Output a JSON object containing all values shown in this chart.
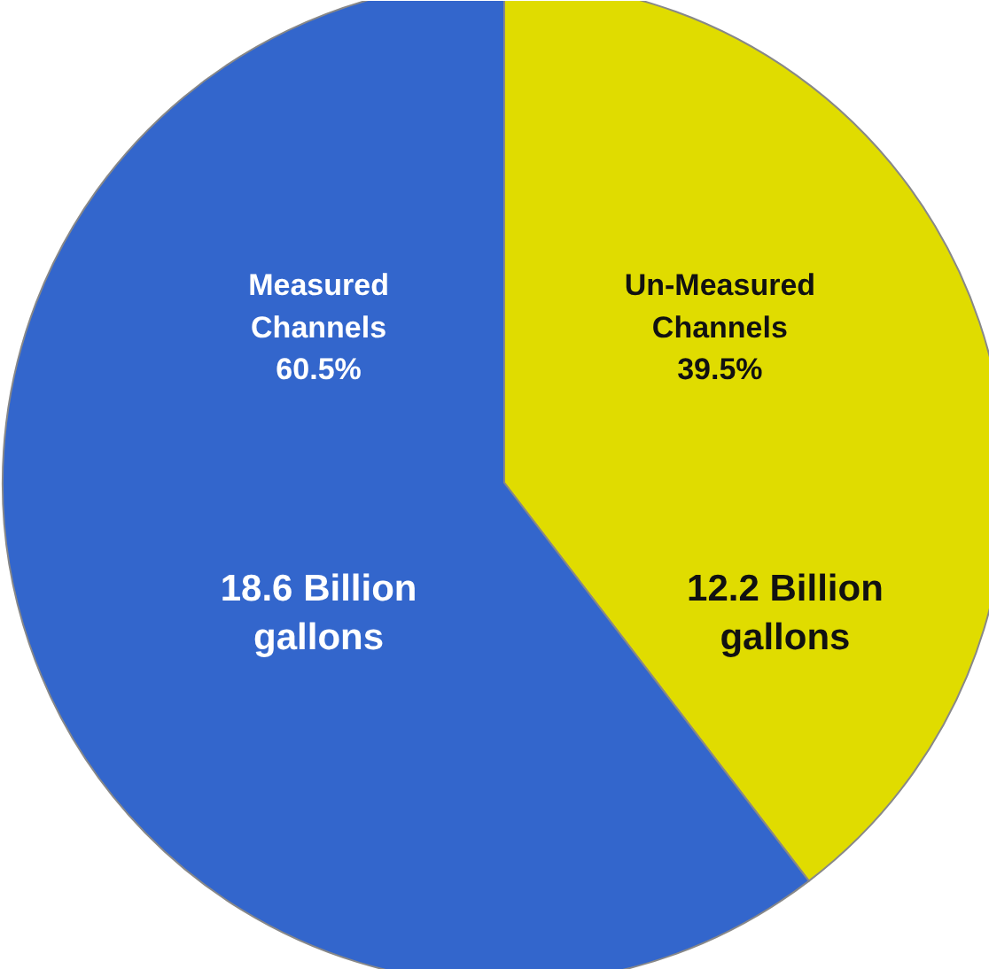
{
  "chart_data": {
    "type": "pie",
    "categories": [
      "Measured Channels",
      "Un-Measured Channels"
    ],
    "values": [
      18.6,
      12.2
    ],
    "colors": [
      "#3366cc",
      "#e0dc00"
    ],
    "value_labels": [
      "18.6 Billion gallons",
      "12.2 Billion gallons"
    ],
    "annotations": [
      "60.5%",
      "39.5%"
    ]
  }
}
